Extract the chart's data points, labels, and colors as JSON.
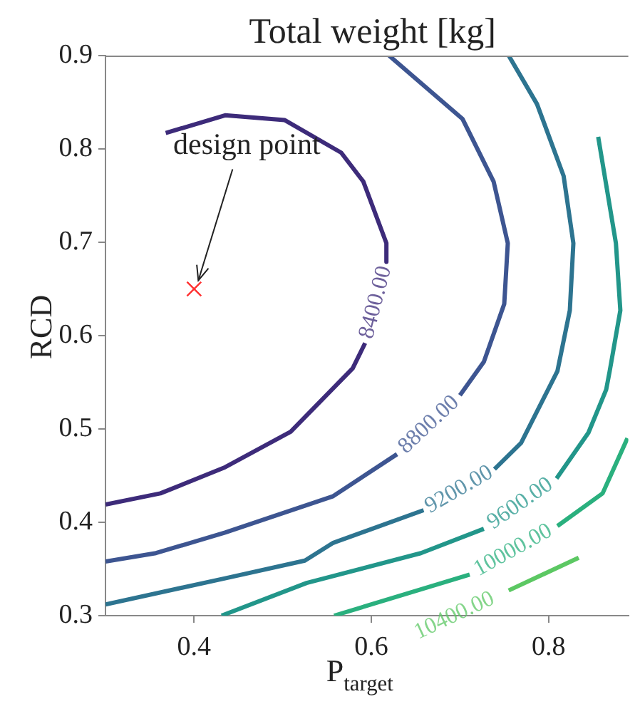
{
  "chart_data": {
    "type": "line",
    "title": "Total weight [kg]",
    "xlabel": "P$_{target}$",
    "ylabel": "RCD",
    "xlim": [
      0.3,
      0.89
    ],
    "ylim": [
      0.3,
      0.9
    ],
    "xticks": [
      0.4,
      0.6,
      0.8
    ],
    "yticks": [
      0.3,
      0.4,
      0.5,
      0.6,
      0.7,
      0.8,
      0.9
    ],
    "grid": false,
    "legend": false,
    "series": [
      {
        "name": "8400.00",
        "color": "#3d2b7a",
        "marker": "none",
        "x": [
          0.368,
          0.435,
          0.502,
          0.566,
          0.591,
          0.617,
          0.617,
          0.605,
          0.593,
          0.579,
          0.509,
          0.435,
          0.362,
          0.3
        ],
        "values": [
          0.817,
          0.836,
          0.831,
          0.796,
          0.765,
          0.699,
          0.679,
          null,
          0.592,
          0.565,
          0.497,
          0.459,
          0.431,
          0.419
        ]
      },
      {
        "name": "8800.00",
        "color": "#3d5591",
        "marker": "none",
        "x": [
          0.62,
          0.703,
          0.738,
          0.754,
          0.75,
          0.727,
          0.7,
          0.665,
          0.629,
          0.557,
          0.435,
          0.357,
          0.3
        ],
        "values": [
          0.9,
          0.832,
          0.765,
          0.699,
          0.634,
          0.572,
          0.536,
          null,
          0.473,
          0.428,
          0.389,
          0.367,
          0.358
        ]
      },
      {
        "name": "9200.00",
        "color": "#2d7490",
        "marker": "none",
        "x": [
          0.755,
          0.787,
          0.817,
          0.828,
          0.824,
          0.81,
          0.769,
          0.739,
          0.699,
          0.659,
          0.557,
          0.525,
          0.435,
          0.3
        ],
        "values": [
          0.9,
          0.848,
          0.771,
          0.699,
          0.627,
          0.562,
          0.485,
          0.457,
          null,
          0.413,
          0.378,
          0.359,
          0.34,
          0.312
        ]
      },
      {
        "name": "9600.00",
        "color": "#22968a",
        "marker": "none",
        "x": [
          0.856,
          0.876,
          0.881,
          0.869,
          0.865,
          0.845,
          0.809,
          0.768,
          0.727,
          0.656,
          0.527,
          0.431
        ],
        "values": [
          0.813,
          0.699,
          0.627,
          0.562,
          0.542,
          0.496,
          0.447,
          null,
          0.393,
          0.367,
          0.335,
          0.3
        ]
      },
      {
        "name": "10000.00",
        "color": "#2ab07e",
        "marker": "none",
        "x": [
          0.889,
          0.861,
          0.81,
          0.76,
          0.711,
          0.558
        ],
        "values": [
          0.49,
          0.431,
          0.396,
          null,
          0.344,
          0.3
        ]
      },
      {
        "name": "10400.00",
        "color": "#5cc863",
        "marker": "none",
        "x": [
          0.834,
          0.755
        ],
        "values": [
          0.362,
          0.327
        ]
      },
      {
        "type": "scatter",
        "color": "#ff3030",
        "marker": "cross",
        "x": [
          0.4
        ],
        "values": [
          0.65
        ]
      }
    ],
    "annotations": [
      {
        "text": "design point",
        "x": 0.4,
        "y": 0.65
      }
    ]
  }
}
